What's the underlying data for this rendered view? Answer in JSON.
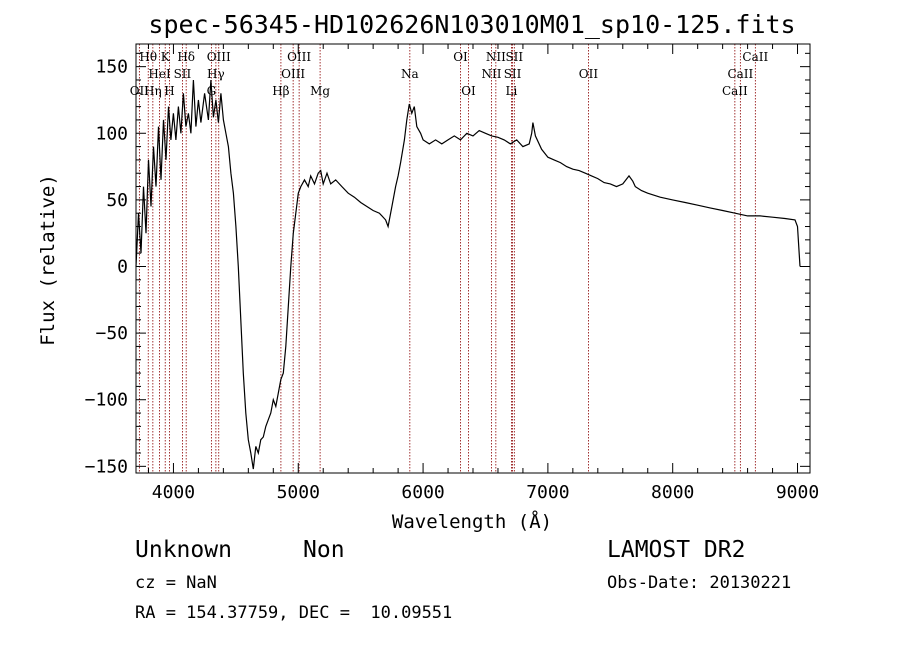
{
  "chart_data": {
    "type": "line",
    "title": "spec-56345-HD102626N103010M01_sp10-125.fits",
    "xlabel": "Wavelength (Å)",
    "ylabel": "Flux (relative)",
    "xlim": [
      3700,
      9100
    ],
    "ylim": [
      -155,
      167
    ],
    "x_ticks": [
      4000,
      5000,
      6000,
      7000,
      8000,
      9000
    ],
    "y_ticks": [
      -150,
      -100,
      -50,
      0,
      50,
      100,
      150
    ],
    "grid": false,
    "series": [
      {
        "name": "",
        "color": "#000000",
        "points": [
          [
            3700,
            0
          ],
          [
            3720,
            40
          ],
          [
            3740,
            10
          ],
          [
            3760,
            60
          ],
          [
            3780,
            25
          ],
          [
            3800,
            80
          ],
          [
            3820,
            45
          ],
          [
            3840,
            90
          ],
          [
            3860,
            60
          ],
          [
            3880,
            105
          ],
          [
            3900,
            65
          ],
          [
            3920,
            110
          ],
          [
            3940,
            80
          ],
          [
            3960,
            120
          ],
          [
            3980,
            95
          ],
          [
            4000,
            115
          ],
          [
            4020,
            95
          ],
          [
            4040,
            120
          ],
          [
            4060,
            100
          ],
          [
            4080,
            130
          ],
          [
            4100,
            105
          ],
          [
            4120,
            115
          ],
          [
            4140,
            100
          ],
          [
            4160,
            140
          ],
          [
            4180,
            105
          ],
          [
            4200,
            125
          ],
          [
            4220,
            108
          ],
          [
            4250,
            130
          ],
          [
            4280,
            110
          ],
          [
            4300,
            140
          ],
          [
            4320,
            112
          ],
          [
            4340,
            125
          ],
          [
            4360,
            108
          ],
          [
            4380,
            130
          ],
          [
            4400,
            110
          ],
          [
            4420,
            100
          ],
          [
            4440,
            90
          ],
          [
            4460,
            70
          ],
          [
            4480,
            55
          ],
          [
            4500,
            30
          ],
          [
            4520,
            0
          ],
          [
            4540,
            -40
          ],
          [
            4560,
            -80
          ],
          [
            4580,
            -110
          ],
          [
            4600,
            -130
          ],
          [
            4620,
            -140
          ],
          [
            4640,
            -152
          ],
          [
            4660,
            -135
          ],
          [
            4680,
            -140
          ],
          [
            4700,
            -130
          ],
          [
            4720,
            -128
          ],
          [
            4740,
            -120
          ],
          [
            4760,
            -115
          ],
          [
            4780,
            -110
          ],
          [
            4800,
            -100
          ],
          [
            4820,
            -105
          ],
          [
            4840,
            -95
          ],
          [
            4860,
            -85
          ],
          [
            4880,
            -80
          ],
          [
            4900,
            -60
          ],
          [
            4920,
            -30
          ],
          [
            4940,
            0
          ],
          [
            4960,
            25
          ],
          [
            4980,
            40
          ],
          [
            5000,
            55
          ],
          [
            5020,
            60
          ],
          [
            5050,
            65
          ],
          [
            5080,
            60
          ],
          [
            5100,
            68
          ],
          [
            5130,
            62
          ],
          [
            5160,
            70
          ],
          [
            5180,
            72
          ],
          [
            5200,
            62
          ],
          [
            5230,
            70
          ],
          [
            5260,
            62
          ],
          [
            5300,
            65
          ],
          [
            5350,
            60
          ],
          [
            5400,
            55
          ],
          [
            5450,
            52
          ],
          [
            5500,
            48
          ],
          [
            5550,
            45
          ],
          [
            5600,
            42
          ],
          [
            5650,
            40
          ],
          [
            5700,
            35
          ],
          [
            5720,
            30
          ],
          [
            5750,
            45
          ],
          [
            5780,
            60
          ],
          [
            5800,
            68
          ],
          [
            5820,
            78
          ],
          [
            5850,
            95
          ],
          [
            5870,
            110
          ],
          [
            5890,
            122
          ],
          [
            5910,
            115
          ],
          [
            5930,
            120
          ],
          [
            5950,
            105
          ],
          [
            5980,
            100
          ],
          [
            6000,
            95
          ],
          [
            6050,
            92
          ],
          [
            6100,
            95
          ],
          [
            6150,
            92
          ],
          [
            6200,
            95
          ],
          [
            6250,
            98
          ],
          [
            6300,
            95
          ],
          [
            6350,
            100
          ],
          [
            6400,
            98
          ],
          [
            6450,
            102
          ],
          [
            6500,
            100
          ],
          [
            6550,
            98
          ],
          [
            6600,
            97
          ],
          [
            6650,
            95
          ],
          [
            6700,
            92
          ],
          [
            6750,
            95
          ],
          [
            6800,
            90
          ],
          [
            6850,
            92
          ],
          [
            6870,
            100
          ],
          [
            6880,
            108
          ],
          [
            6900,
            98
          ],
          [
            6950,
            88
          ],
          [
            7000,
            82
          ],
          [
            7050,
            80
          ],
          [
            7100,
            78
          ],
          [
            7150,
            75
          ],
          [
            7200,
            73
          ],
          [
            7250,
            72
          ],
          [
            7300,
            70
          ],
          [
            7350,
            68
          ],
          [
            7400,
            66
          ],
          [
            7450,
            63
          ],
          [
            7500,
            62
          ],
          [
            7550,
            60
          ],
          [
            7600,
            62
          ],
          [
            7650,
            68
          ],
          [
            7680,
            64
          ],
          [
            7700,
            60
          ],
          [
            7750,
            57
          ],
          [
            7800,
            55
          ],
          [
            7900,
            52
          ],
          [
            8000,
            50
          ],
          [
            8100,
            48
          ],
          [
            8200,
            46
          ],
          [
            8300,
            44
          ],
          [
            8400,
            42
          ],
          [
            8500,
            40
          ],
          [
            8600,
            38
          ],
          [
            8700,
            38
          ],
          [
            8800,
            37
          ],
          [
            8900,
            36
          ],
          [
            8980,
            35
          ],
          [
            9000,
            30
          ],
          [
            9020,
            0
          ]
        ]
      }
    ],
    "line_markers": {
      "color": "#8b0000",
      "items": [
        {
          "label": "OII",
          "x": 3727,
          "row": 3
        },
        {
          "label": "Hθ",
          "x": 3798,
          "row": 1
        },
        {
          "label": "Hη",
          "x": 3835,
          "row": 3
        },
        {
          "label": "HeI",
          "x": 3889,
          "row": 2
        },
        {
          "label": "K",
          "x": 3934,
          "row": 1
        },
        {
          "label": "H",
          "x": 3968,
          "row": 3
        },
        {
          "label": "SII",
          "x": 4072,
          "row": 2
        },
        {
          "label": "Hδ",
          "x": 4102,
          "row": 1
        },
        {
          "label": "G",
          "x": 4304,
          "row": 3
        },
        {
          "label": "Hγ",
          "x": 4340,
          "row": 2
        },
        {
          "label": "OIII",
          "x": 4363,
          "row": 1
        },
        {
          "label": "Hβ",
          "x": 4861,
          "row": 3
        },
        {
          "label": "OIII",
          "x": 4959,
          "row": 2
        },
        {
          "label": "OIII",
          "x": 5007,
          "row": 1
        },
        {
          "label": "Mg",
          "x": 5175,
          "row": 3
        },
        {
          "label": "Na",
          "x": 5894,
          "row": 2
        },
        {
          "label": "OI",
          "x": 6300,
          "row": 1
        },
        {
          "label": "OI",
          "x": 6364,
          "row": 3
        },
        {
          "label": "NII",
          "x": 6548,
          "row": 2
        },
        {
          "label": "NII",
          "x": 6583,
          "row": 1
        },
        {
          "label": "Li",
          "x": 6708,
          "row": 3
        },
        {
          "label": "SII",
          "x": 6717,
          "row": 2
        },
        {
          "label": "SII",
          "x": 6731,
          "row": 1
        },
        {
          "label": "OII",
          "x": 7325,
          "row": 2
        },
        {
          "label": "CaII",
          "x": 8498,
          "row": 3
        },
        {
          "label": "CaII",
          "x": 8542,
          "row": 2
        },
        {
          "label": "CaII",
          "x": 8662,
          "row": 1
        }
      ]
    }
  },
  "info": {
    "class": "Unknown",
    "subclass": "Non",
    "survey": "LAMOST DR2",
    "cz": "cz = NaN",
    "obs_date": "Obs-Date: 20130221",
    "coords": "RA = 154.37759, DEC =  10.09551"
  }
}
